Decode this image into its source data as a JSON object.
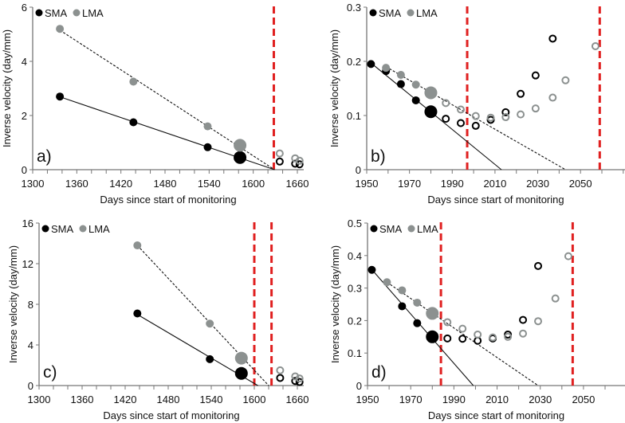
{
  "colors": {
    "sma": "#000000",
    "lma": "#8c9190",
    "failure_line": "#e02020"
  },
  "chart_data": [
    {
      "type": "scatter",
      "panel_label": "a)",
      "xlabel": "Days since start of monitoring",
      "ylabel": "Inverse velocity (day/mm)",
      "xlim": [
        1300,
        1660
      ],
      "xticks": [
        1300,
        1360,
        1420,
        1480,
        1540,
        1600,
        1660
      ],
      "xminor": 20,
      "ylim": [
        0,
        6
      ],
      "yticks": [
        0,
        2,
        4,
        6
      ],
      "legend": [
        "SMA",
        "LMA"
      ],
      "legend_placement": "top-left",
      "vlines": [
        1628
      ],
      "series": [
        {
          "name": "SMA",
          "filled": [
            [
              1337,
              2.7
            ],
            [
              1437,
              1.75
            ],
            [
              1538,
              0.83
            ]
          ],
          "last": [
            1582,
            0.45
          ],
          "fit": [
            [
              1337,
              2.69
            ],
            [
              1629,
              0
            ]
          ],
          "open": [
            [
              1636,
              0.3
            ],
            [
              1657,
              0.22
            ],
            [
              1663,
              0.2
            ]
          ]
        },
        {
          "name": "LMA",
          "filled": [
            [
              1337,
              5.2
            ],
            [
              1437,
              3.25
            ],
            [
              1538,
              1.6
            ]
          ],
          "last": [
            1582,
            0.9
          ],
          "fit": [
            [
              1337,
              5.15
            ],
            [
              1629,
              0
            ]
          ],
          "open": [
            [
              1636,
              0.6
            ],
            [
              1657,
              0.42
            ],
            [
              1663,
              0.33
            ]
          ]
        }
      ]
    },
    {
      "type": "scatter",
      "panel_label": "b)",
      "xlabel": "Days since start of monitoring",
      "ylabel": "Inverse velocity (day/mm)",
      "xlim": [
        1950,
        2060
      ],
      "xticks": [
        1950,
        1970,
        1990,
        2010,
        2030,
        2050
      ],
      "xminor": 10,
      "ylim": [
        0,
        0.3
      ],
      "yticks": [
        0,
        0.1,
        0.2,
        0.3
      ],
      "legend": [
        "SMA",
        "LMA"
      ],
      "legend_placement": "top-left",
      "vlines": [
        1997,
        2059
      ],
      "series": [
        {
          "name": "SMA",
          "filled": [
            [
              1952,
              0.195
            ],
            [
              1959,
              0.182
            ],
            [
              1966,
              0.158
            ],
            [
              1973,
              0.128
            ]
          ],
          "last": [
            1980,
            0.107
          ],
          "fit": [
            [
              1952,
              0.197
            ],
            [
              2013,
              0
            ]
          ],
          "open": [
            [
              1987,
              0.094
            ],
            [
              1994,
              0.086
            ],
            [
              2001,
              0.081
            ],
            [
              2008,
              0.092
            ],
            [
              2015,
              0.106
            ],
            [
              2022,
              0.14
            ],
            [
              2029,
              0.174
            ],
            [
              2037,
              0.242
            ]
          ]
        },
        {
          "name": "LMA",
          "filled": [
            [
              1959,
              0.188
            ],
            [
              1966,
              0.175
            ],
            [
              1973,
              0.157
            ]
          ],
          "last": [
            1980,
            0.142
          ],
          "fit": [
            [
              1959,
              0.19
            ],
            [
              2043,
              0
            ]
          ],
          "open": [
            [
              1987,
              0.123
            ],
            [
              1994,
              0.111
            ],
            [
              2001,
              0.099
            ],
            [
              2008,
              0.096
            ],
            [
              2015,
              0.097
            ],
            [
              2022,
              0.102
            ],
            [
              2029,
              0.113
            ],
            [
              2037,
              0.133
            ],
            [
              2043,
              0.165
            ],
            [
              2057,
              0.228
            ]
          ]
        }
      ]
    },
    {
      "type": "scatter",
      "panel_label": "c)",
      "xlabel": "Days since start of monitoring",
      "ylabel": "Inverse velocity (day/mm)",
      "xlim": [
        1300,
        1660
      ],
      "xticks": [
        1300,
        1360,
        1420,
        1480,
        1540,
        1600,
        1660
      ],
      "xminor": 20,
      "ylim": [
        0,
        16
      ],
      "yticks": [
        0,
        4,
        8,
        12,
        16
      ],
      "legend": [
        "SMA",
        "LMA"
      ],
      "legend_placement": "top-left",
      "vlines": [
        1600,
        1624
      ],
      "series": [
        {
          "name": "SMA",
          "filled": [
            [
              1437,
              7.1
            ],
            [
              1538,
              2.6
            ]
          ],
          "last": [
            1582,
            1.2
          ],
          "fit": [
            [
              1437,
              7.0
            ],
            [
              1605,
              0
            ]
          ],
          "open": [
            [
              1636,
              0.75
            ],
            [
              1657,
              0.45
            ],
            [
              1663,
              0.35
            ]
          ]
        },
        {
          "name": "LMA",
          "filled": [
            [
              1437,
              13.8
            ],
            [
              1538,
              6.1
            ]
          ],
          "last": [
            1582,
            2.7
          ],
          "fit": [
            [
              1437,
              13.8
            ],
            [
              1620,
              0
            ]
          ],
          "open": [
            [
              1636,
              1.5
            ],
            [
              1657,
              0.9
            ],
            [
              1663,
              0.7
            ]
          ]
        }
      ]
    },
    {
      "type": "scatter",
      "panel_label": "d)",
      "xlabel": "Days since start of monitoring",
      "ylabel": "Inverse velocity (day/mm)",
      "xlim": [
        1950,
        2060
      ],
      "xticks": [
        1950,
        1970,
        1990,
        2010,
        2030,
        2050
      ],
      "xminor": 10,
      "ylim": [
        0,
        0.5
      ],
      "yticks": [
        0,
        0.1,
        0.2,
        0.3,
        0.4,
        0.5
      ],
      "legend": [
        "SMA",
        "LMA"
      ],
      "legend_placement": "top-left",
      "vlines": [
        1984,
        2045
      ],
      "series": [
        {
          "name": "SMA",
          "filled": [
            [
              1952,
              0.356
            ],
            [
              1966,
              0.244
            ],
            [
              1973,
              0.192
            ]
          ],
          "last": [
            1980,
            0.15
          ],
          "fit": [
            [
              1952,
              0.357
            ],
            [
              1999,
              0
            ]
          ],
          "open": [
            [
              1987,
              0.145
            ],
            [
              1994,
              0.144
            ],
            [
              2001,
              0.138
            ],
            [
              2008,
              0.145
            ],
            [
              2015,
              0.157
            ],
            [
              2022,
              0.202
            ],
            [
              2029,
              0.368
            ]
          ]
        },
        {
          "name": "LMA",
          "filled": [
            [
              1959,
              0.318
            ],
            [
              1966,
              0.293
            ],
            [
              1973,
              0.255
            ]
          ],
          "last": [
            1980,
            0.222
          ],
          "fit": [
            [
              1959,
              0.318
            ],
            [
              2029,
              0
            ]
          ],
          "open": [
            [
              1987,
              0.195
            ],
            [
              1994,
              0.175
            ],
            [
              2001,
              0.157
            ],
            [
              2008,
              0.148
            ],
            [
              2015,
              0.15
            ],
            [
              2022,
              0.16
            ],
            [
              2029,
              0.198
            ],
            [
              2037,
              0.268
            ],
            [
              2043,
              0.398
            ]
          ]
        }
      ]
    }
  ]
}
